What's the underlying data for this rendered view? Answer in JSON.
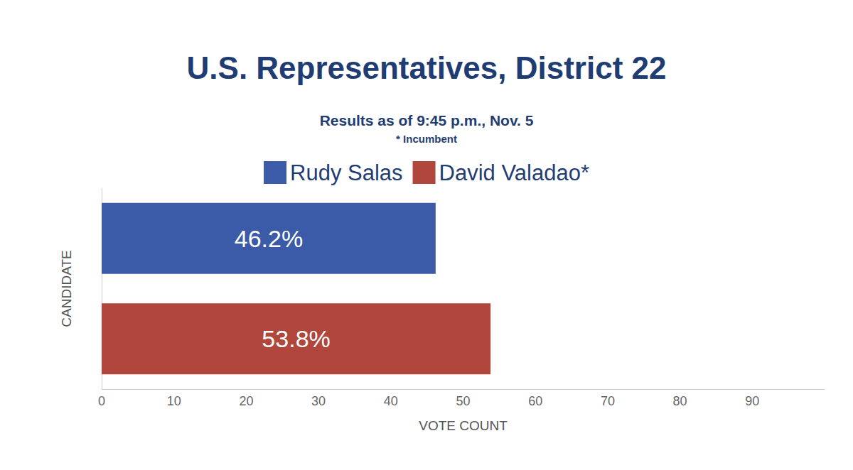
{
  "chart_data": {
    "type": "bar",
    "orientation": "horizontal",
    "title": "U.S. Representatives, District 22",
    "subtitle": "Results as of 9:45 p.m., Nov. 5",
    "note": "* Incumbent",
    "x_label": "VOTE COUNT",
    "y_label": "CANDIDATE",
    "categories": [
      null,
      null
    ],
    "series": [
      {
        "name": "Rudy Salas",
        "color": "#3b5ba8",
        "values": [
          46.2,
          null
        ],
        "value_labels": [
          "46.2%",
          null
        ]
      },
      {
        "name": "David Valadao*",
        "color": "#b1463c",
        "values": [
          null,
          53.8
        ],
        "value_labels": [
          null,
          "53.8%"
        ]
      }
    ],
    "xlim": [
      0,
      100
    ],
    "xticks": [
      0,
      10,
      20,
      30,
      40,
      50,
      60,
      70,
      80,
      90
    ],
    "grid": false,
    "legend": "top",
    "data_labels": true,
    "tick_labels": "x"
  }
}
